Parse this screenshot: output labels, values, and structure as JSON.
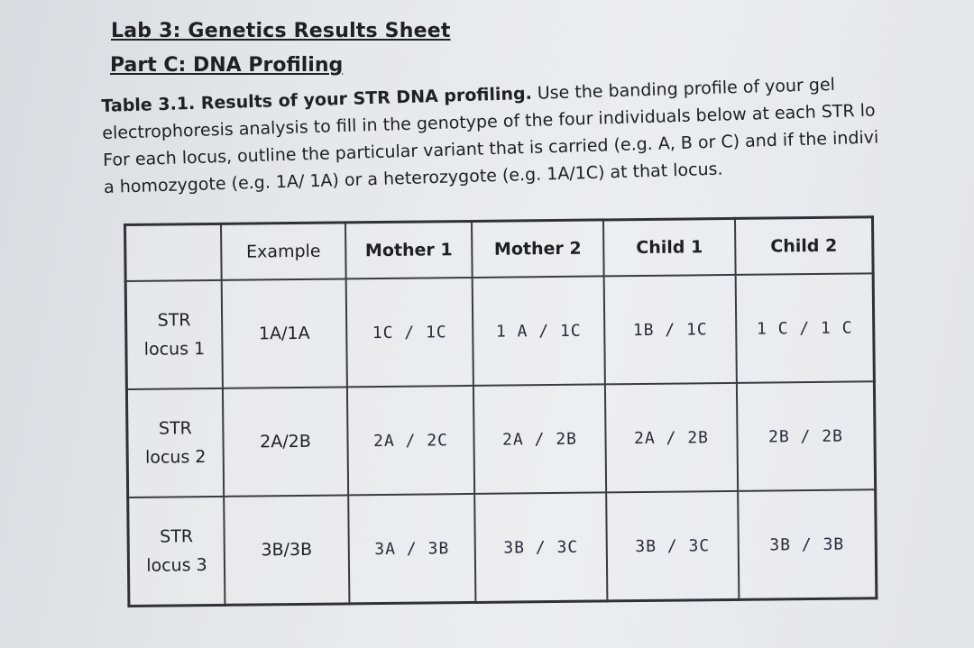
{
  "document": {
    "title": "Lab 3: Genetics Results Sheet",
    "subtitle": "Part C: DNA Profiling",
    "caption": {
      "bold_lead": "Table 3.1. Results of your STR DNA profiling.",
      "line1_rest": " Use the banding profile of your gel",
      "line2": "electrophoresis analysis to fill in the genotype of the four individuals below at each STR lo",
      "line3": "For each locus, outline the particular variant that is carried (e.g. A, B or C) and if the indivi",
      "line4": "a homozygote (e.g. 1A/ 1A) or a heterozygote (e.g. 1A/1C) at that locus."
    }
  },
  "table": {
    "headers": [
      "",
      "Example",
      "Mother 1",
      "Mother 2",
      "Child 1",
      "Child 2"
    ],
    "rows": [
      {
        "locus_line1": "STR",
        "locus_line2": "locus 1",
        "example": "1A/1A",
        "mother1": "1C / 1C",
        "mother2": "1 A / 1C",
        "child1": "1B / 1C",
        "child2": "1 C / 1 C"
      },
      {
        "locus_line1": "STR",
        "locus_line2": "locus 2",
        "example": "2A/2B",
        "mother1": "2A / 2C",
        "mother2": "2A / 2B",
        "child1": "2A / 2B",
        "child2": "2B / 2B"
      },
      {
        "locus_line1": "STR",
        "locus_line2": "locus 3",
        "example": "3B/3B",
        "mother1": "3A / 3B",
        "mother2": "3B / 3C",
        "child1": "3B / 3C",
        "child2": "3B / 3B"
      }
    ]
  }
}
